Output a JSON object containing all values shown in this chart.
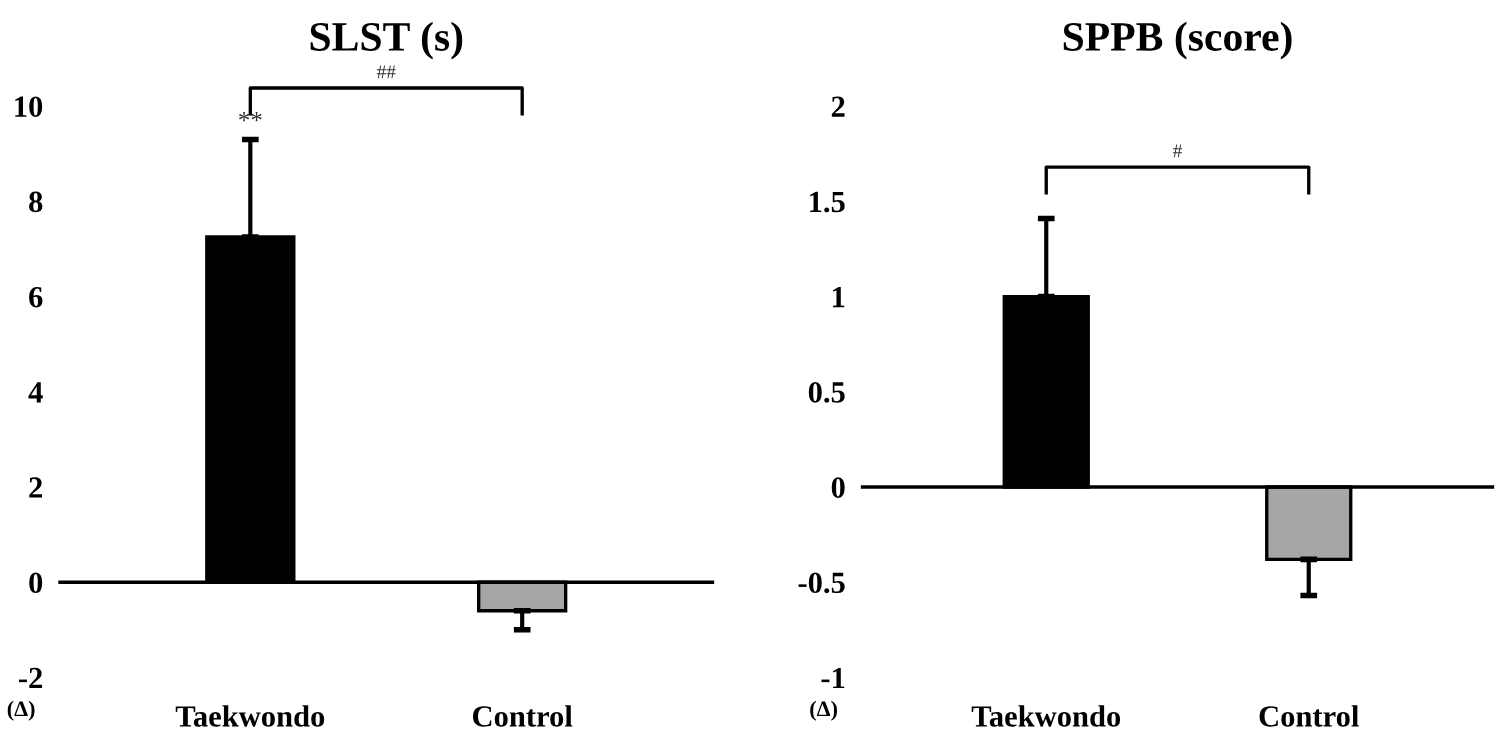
{
  "chart_data": [
    {
      "type": "bar",
      "title": "SLST (s)",
      "categories": [
        "Taekwondo",
        "Control"
      ],
      "values": [
        7.25,
        -0.6
      ],
      "colors": [
        "#000000",
        "#a6a6a6"
      ],
      "errors": [
        [
          7.25,
          9.3
        ],
        [
          -1.0,
          -0.6
        ]
      ],
      "ylim": [
        -2,
        10
      ],
      "yticks": [
        -2,
        0,
        2,
        4,
        6,
        8,
        10
      ],
      "legend": false,
      "annotations": [
        {
          "text": "**",
          "x": "Taekwondo",
          "y": 9.3
        },
        "##",
        "(Δ)"
      ]
    },
    {
      "type": "bar",
      "title": "SPPB (score)",
      "categories": [
        "Taekwondo",
        "Control"
      ],
      "values": [
        1.0,
        -0.38
      ],
      "colors": [
        "#000000",
        "#a6a6a6"
      ],
      "errors": [
        [
          1.0,
          1.41
        ],
        [
          -0.57,
          -0.38
        ]
      ],
      "ylim": [
        -1,
        2
      ],
      "yticks": [
        -1,
        -0.5,
        0,
        0.5,
        1,
        1.5,
        2
      ],
      "legend": false,
      "annotations": [
        "#",
        "(Δ)"
      ]
    }
  ]
}
